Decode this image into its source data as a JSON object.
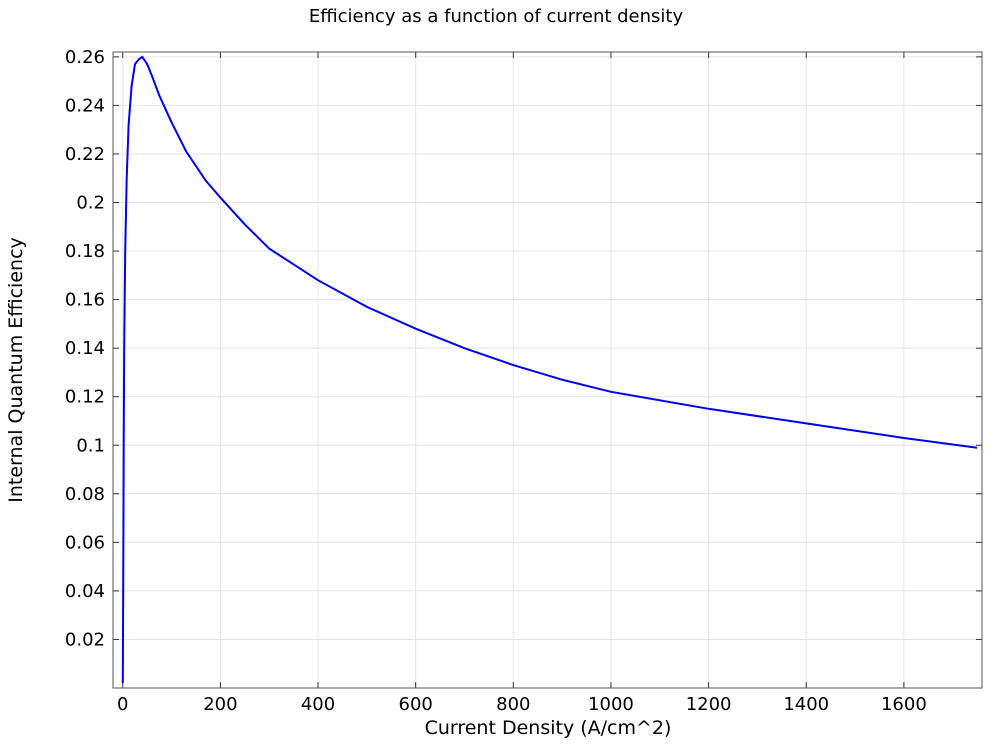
{
  "chart_data": {
    "type": "line",
    "title": "Efficiency as a function of current density",
    "xlabel": "Current Density (A/cm^2)",
    "ylabel": "Internal Quantum Efficiency",
    "xlim": [
      -20,
      1760
    ],
    "ylim": [
      0,
      0.262
    ],
    "xticks": [
      0,
      200,
      400,
      600,
      800,
      1000,
      1200,
      1400,
      1600
    ],
    "xtick_labels": [
      "0",
      "200",
      "400",
      "600",
      "800",
      "1000",
      "1200",
      "1400",
      "1600"
    ],
    "yticks": [
      0.02,
      0.04,
      0.06,
      0.08,
      0.1,
      0.12,
      0.14,
      0.16,
      0.18,
      0.2,
      0.22,
      0.24,
      0.26
    ],
    "ytick_labels": [
      "0.02",
      "0.04",
      "0.06",
      "0.08",
      "0.1",
      "0.12",
      "0.14",
      "0.16",
      "0.18",
      "0.2",
      "0.22",
      "0.24",
      "0.26"
    ],
    "grid": true,
    "series": [
      {
        "color": "#0000ee",
        "x": [
          0.1,
          1,
          2,
          3,
          5,
          8,
          12,
          18,
          25,
          33,
          40,
          50,
          60,
          75,
          100,
          130,
          170,
          200,
          250,
          300,
          400,
          500,
          600,
          700,
          800,
          900,
          1000,
          1200,
          1400,
          1600,
          1750
        ],
        "y": [
          0.002,
          0.05,
          0.1,
          0.14,
          0.18,
          0.21,
          0.232,
          0.248,
          0.257,
          0.259,
          0.26,
          0.257,
          0.252,
          0.244,
          0.233,
          0.221,
          0.209,
          0.202,
          0.191,
          0.181,
          0.168,
          0.157,
          0.148,
          0.14,
          0.133,
          0.127,
          0.122,
          0.115,
          0.109,
          0.103,
          0.099
        ]
      }
    ]
  }
}
